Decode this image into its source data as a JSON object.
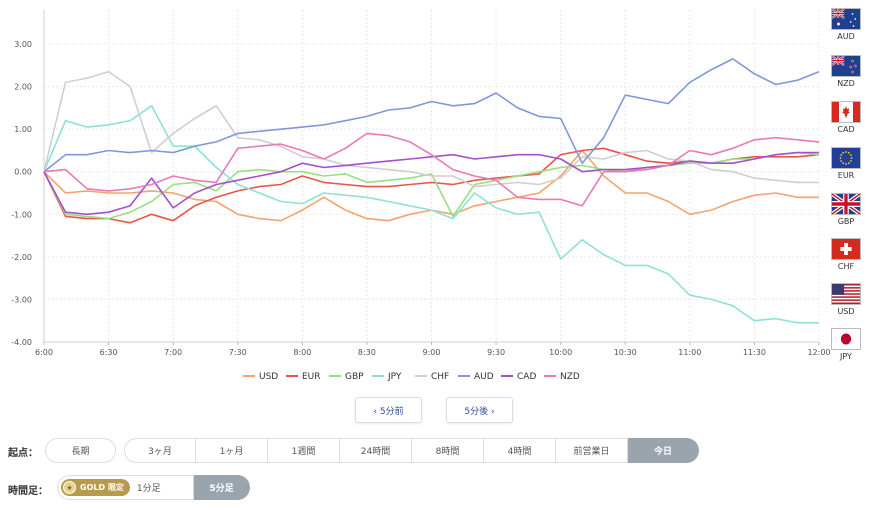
{
  "chart_data": {
    "type": "line",
    "x": [
      "6:00",
      "6:10",
      "6:20",
      "6:30",
      "6:40",
      "6:50",
      "7:00",
      "7:10",
      "7:20",
      "7:30",
      "7:40",
      "7:50",
      "8:00",
      "8:10",
      "8:20",
      "8:30",
      "8:40",
      "8:50",
      "9:00",
      "9:10",
      "9:20",
      "9:30",
      "9:40",
      "9:50",
      "10:00",
      "10:10",
      "10:20",
      "10:30",
      "10:40",
      "10:50",
      "11:00",
      "11:10",
      "11:20",
      "11:30",
      "11:40",
      "11:50",
      "12:00"
    ],
    "x_tick_labels": [
      "6:00",
      "6:30",
      "7:00",
      "7:30",
      "8:00",
      "8:30",
      "9:00",
      "9:30",
      "10:00",
      "10:30",
      "11:00",
      "11:30",
      "12:00"
    ],
    "y_tick_labels": [
      "3.00",
      "2.00",
      "1.00",
      "0.00",
      "-1.00",
      "-2.00",
      "-3.00",
      "-4.00"
    ],
    "ylim": [
      -4,
      3.8
    ],
    "grid": true,
    "legend_position": "bottom",
    "series": [
      {
        "name": "USD",
        "color": "#f4a36e",
        "values": [
          0,
          -0.5,
          -0.45,
          -0.5,
          -0.5,
          -0.45,
          -0.5,
          -0.65,
          -0.7,
          -1.0,
          -1.1,
          -1.15,
          -0.9,
          -0.6,
          -0.9,
          -1.1,
          -1.15,
          -1.0,
          -0.9,
          -1.0,
          -0.8,
          -0.7,
          -0.6,
          -0.5,
          -0.1,
          0.5,
          -0.1,
          -0.5,
          -0.5,
          -0.7,
          -1.0,
          -0.9,
          -0.7,
          -0.55,
          -0.5,
          -0.6,
          -0.6
        ]
      },
      {
        "name": "EUR",
        "color": "#e8564b",
        "values": [
          0,
          -1.05,
          -1.1,
          -1.1,
          -1.2,
          -1.0,
          -1.15,
          -0.8,
          -0.6,
          -0.45,
          -0.35,
          -0.3,
          -0.1,
          -0.25,
          -0.3,
          -0.35,
          -0.35,
          -0.3,
          -0.25,
          -0.3,
          -0.2,
          -0.15,
          -0.1,
          -0.05,
          0.4,
          0.5,
          0.55,
          0.4,
          0.25,
          0.2,
          0.25,
          0.2,
          0.3,
          0.35,
          0.35,
          0.35,
          0.4
        ]
      },
      {
        "name": "GBP",
        "color": "#97e07c",
        "values": [
          0,
          -1.0,
          -1.05,
          -1.1,
          -0.95,
          -0.7,
          -0.3,
          -0.25,
          -0.45,
          0.0,
          0.05,
          0.0,
          0.0,
          -0.1,
          -0.05,
          -0.25,
          -0.2,
          -0.15,
          -0.05,
          -1.05,
          -0.3,
          -0.2,
          -0.1,
          0.0,
          0.1,
          0.15,
          0.05,
          0.0,
          0.1,
          0.15,
          0.2,
          0.2,
          0.3,
          0.3,
          0.4,
          0.45,
          0.4
        ]
      },
      {
        "name": "JPY",
        "color": "#8fe1d6",
        "values": [
          0,
          1.2,
          1.05,
          1.1,
          1.2,
          1.55,
          0.6,
          0.6,
          0.1,
          -0.3,
          -0.5,
          -0.7,
          -0.75,
          -0.5,
          -0.55,
          -0.6,
          -0.7,
          -0.8,
          -0.9,
          -1.1,
          -0.5,
          -0.85,
          -1.0,
          -0.95,
          -2.05,
          -1.6,
          -1.95,
          -2.2,
          -2.2,
          -2.4,
          -2.9,
          -3.0,
          -3.15,
          -3.5,
          -3.45,
          -3.55,
          -3.55
        ]
      },
      {
        "name": "CHF",
        "color": "#cfcfcf",
        "values": [
          0,
          2.1,
          2.2,
          2.35,
          2.0,
          0.45,
          0.9,
          1.25,
          1.55,
          0.8,
          0.75,
          0.6,
          0.35,
          0.3,
          0.15,
          0.1,
          0.05,
          0.0,
          -0.1,
          -0.1,
          -0.35,
          -0.3,
          -0.25,
          -0.3,
          -0.15,
          0.35,
          0.3,
          0.45,
          0.5,
          0.3,
          0.25,
          0.05,
          0.0,
          -0.15,
          -0.2,
          -0.25,
          -0.25
        ]
      },
      {
        "name": "AUD",
        "color": "#7f99d8",
        "values": [
          0,
          0.4,
          0.4,
          0.5,
          0.45,
          0.5,
          0.45,
          0.6,
          0.7,
          0.9,
          0.95,
          1.0,
          1.05,
          1.1,
          1.2,
          1.3,
          1.45,
          1.5,
          1.65,
          1.55,
          1.6,
          1.85,
          1.5,
          1.3,
          1.25,
          0.2,
          0.8,
          1.8,
          1.7,
          1.6,
          2.1,
          2.4,
          2.65,
          2.3,
          2.05,
          2.15,
          2.35
        ]
      },
      {
        "name": "CAD",
        "color": "#a64fcc",
        "values": [
          0,
          -0.95,
          -1.0,
          -0.95,
          -0.8,
          -0.15,
          -0.85,
          -0.5,
          -0.3,
          -0.2,
          -0.1,
          0.0,
          0.2,
          0.1,
          0.15,
          0.2,
          0.25,
          0.3,
          0.35,
          0.4,
          0.3,
          0.35,
          0.4,
          0.4,
          0.3,
          0.0,
          0.05,
          0.05,
          0.1,
          0.15,
          0.25,
          0.2,
          0.2,
          0.3,
          0.4,
          0.45,
          0.45
        ]
      },
      {
        "name": "NZD",
        "color": "#e97ab3",
        "values": [
          0,
          0.05,
          -0.4,
          -0.45,
          -0.4,
          -0.3,
          -0.1,
          -0.2,
          -0.25,
          0.55,
          0.6,
          0.65,
          0.5,
          0.3,
          0.55,
          0.9,
          0.85,
          0.7,
          0.4,
          0.05,
          -0.1,
          -0.2,
          -0.6,
          -0.65,
          -0.65,
          -0.8,
          0.0,
          0.0,
          0.05,
          0.15,
          0.5,
          0.4,
          0.55,
          0.75,
          0.8,
          0.75,
          0.7
        ]
      }
    ]
  },
  "flags": [
    {
      "code": "AUD",
      "icon": "australia-flag-icon"
    },
    {
      "code": "NZD",
      "icon": "new-zealand-flag-icon"
    },
    {
      "code": "CAD",
      "icon": "canada-flag-icon"
    },
    {
      "code": "EUR",
      "icon": "eu-flag-icon"
    },
    {
      "code": "GBP",
      "icon": "uk-flag-icon"
    },
    {
      "code": "CHF",
      "icon": "swiss-flag-icon"
    },
    {
      "code": "USD",
      "icon": "usa-flag-icon"
    },
    {
      "code": "JPY",
      "icon": "japan-flag-icon"
    }
  ],
  "nav": {
    "prev": "‹ 5分前",
    "next": "5分後 ›"
  },
  "start_row": {
    "label": "起点：",
    "long_pill": "長期",
    "options": [
      "3ヶ月",
      "1ヶ月",
      "1週間",
      "24時間",
      "8時間",
      "4時間",
      "前営業日",
      "今日"
    ],
    "active_index": 7
  },
  "timeframe_row": {
    "label": "時間足：",
    "gold_label": "GOLD 限定",
    "options": [
      "1分足",
      "5分足"
    ],
    "active_index": 1
  }
}
